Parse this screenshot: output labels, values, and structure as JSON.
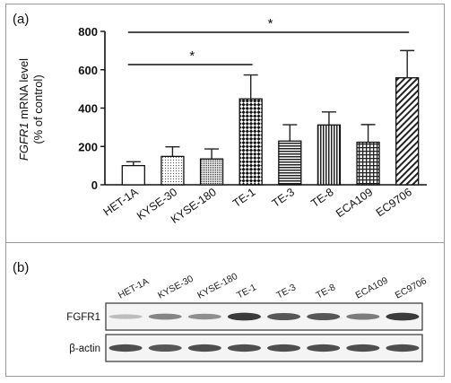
{
  "panel_a": {
    "label": "(a)",
    "ylabel_gene": "FGFR1",
    "ylabel_rest": " mRNA level",
    "ylabel_line2": "(% of control)",
    "sig_marks": [
      "*",
      "*"
    ]
  },
  "panel_b": {
    "label": "(b)",
    "lanes": [
      "HET-1A",
      "KYSE-30",
      "KYSE-180",
      "TE-1",
      "TE-3",
      "TE-8",
      "ECA109",
      "EC9706"
    ],
    "rows": [
      {
        "label": "FGFR1",
        "intensity": [
          0.25,
          0.55,
          0.5,
          0.95,
          0.8,
          0.8,
          0.6,
          0.95
        ]
      },
      {
        "label": "β-actin",
        "intensity": [
          0.85,
          0.8,
          0.85,
          0.85,
          0.85,
          0.85,
          0.85,
          0.85
        ]
      }
    ]
  },
  "chart_data": {
    "type": "bar",
    "categories": [
      "HET-1A",
      "KYSE-30",
      "KYSE-180",
      "TE-1",
      "TE-3",
      "TE-8",
      "ECA109",
      "EC9706"
    ],
    "values": [
      100,
      148,
      135,
      448,
      228,
      312,
      222,
      558
    ],
    "errors": [
      20,
      50,
      52,
      125,
      85,
      68,
      92,
      142
    ],
    "ylabel": "FGFR1 mRNA level (% of control)",
    "ylim": [
      0,
      800
    ],
    "yticks": [
      0,
      200,
      400,
      600,
      800
    ],
    "patterns": [
      "white",
      "dots",
      "dense-dots",
      "checker",
      "hlines",
      "vlines",
      "grid",
      "diagonal"
    ],
    "significance": [
      {
        "from": "HET-1A",
        "to": "TE-1",
        "label": "*"
      },
      {
        "from": "HET-1A",
        "to": "EC9706",
        "label": "*"
      }
    ]
  }
}
